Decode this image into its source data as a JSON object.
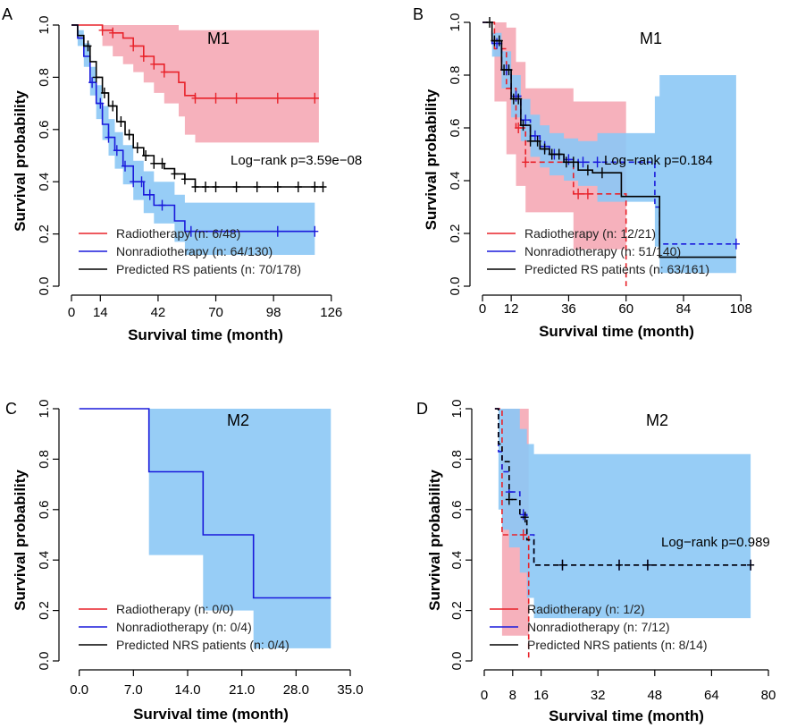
{
  "colors": {
    "radio": "#e8222a",
    "nonradio": "#1a1adb",
    "predicted": "#000000",
    "band_radio": "#f5a3b0",
    "band_nonradio": "#8cc8f5"
  },
  "chart_data": [
    {
      "type": "line",
      "panel": "A",
      "title": "M1",
      "xlabel": "Survival time (month)",
      "ylabel": "Survival probability",
      "xlim": [
        0,
        130
      ],
      "ylim": [
        0,
        1
      ],
      "xticks": [
        "0",
        "14",
        "42",
        "70",
        "98",
        "126"
      ],
      "xtick_values": [
        0,
        14,
        42,
        70,
        98,
        126
      ],
      "yticks": [
        "0.0",
        "0.2",
        "0.4",
        "0.6",
        "0.8",
        "1.0"
      ],
      "ytick_values": [
        0,
        0.2,
        0.4,
        0.6,
        0.8,
        1.0
      ],
      "annotation": "Log−rank p=3.59e−08",
      "legend": [
        "Radiotherapy (n: 6/48)",
        "Nonradiotherapy (n: 64/130)",
        "Predicted RS patients (n: 70/178)"
      ],
      "series": [
        {
          "name": "Radiotherapy (n: 6/48)",
          "key": "radio",
          "dash": false,
          "x": [
            0,
            15,
            20,
            25,
            30,
            35,
            40,
            45,
            52,
            55,
            60,
            120
          ],
          "y": [
            1.0,
            0.98,
            0.97,
            0.95,
            0.92,
            0.88,
            0.85,
            0.82,
            0.78,
            0.73,
            0.72,
            0.72
          ],
          "lower": [
            1.0,
            0.92,
            0.88,
            0.85,
            0.82,
            0.78,
            0.74,
            0.7,
            0.65,
            0.58,
            0.55,
            0.55
          ],
          "upper": [
            1.0,
            1.0,
            1.0,
            1.0,
            1.0,
            1.0,
            1.0,
            1.0,
            0.98,
            0.98,
            0.98,
            0.98
          ],
          "censor": [
            15,
            20,
            30,
            35,
            40,
            45,
            60,
            70,
            80,
            100,
            118
          ]
        },
        {
          "name": "Nonradiotherapy (n: 64/130)",
          "key": "nonradio",
          "dash": false,
          "x": [
            0,
            3,
            6,
            9,
            12,
            15,
            18,
            21,
            25,
            30,
            35,
            40,
            50,
            55,
            118
          ],
          "y": [
            1.0,
            0.95,
            0.88,
            0.78,
            0.7,
            0.62,
            0.57,
            0.52,
            0.46,
            0.4,
            0.35,
            0.31,
            0.25,
            0.21,
            0.21
          ],
          "lower": [
            1.0,
            0.92,
            0.84,
            0.73,
            0.64,
            0.56,
            0.5,
            0.45,
            0.39,
            0.33,
            0.28,
            0.24,
            0.17,
            0.12,
            0.12
          ],
          "upper": [
            1.0,
            0.98,
            0.93,
            0.84,
            0.77,
            0.69,
            0.64,
            0.59,
            0.54,
            0.48,
            0.44,
            0.4,
            0.35,
            0.32,
            0.32
          ],
          "censor": [
            10,
            14,
            18,
            22,
            26,
            30,
            34,
            38,
            44,
            58,
            100,
            118
          ]
        },
        {
          "name": "Predicted RS patients (n: 70/178)",
          "key": "predicted",
          "dash": false,
          "x": [
            0,
            3,
            6,
            9,
            12,
            15,
            18,
            22,
            26,
            30,
            35,
            40,
            45,
            50,
            55,
            60,
            70,
            80,
            122
          ],
          "y": [
            1.0,
            0.96,
            0.92,
            0.86,
            0.8,
            0.74,
            0.69,
            0.63,
            0.58,
            0.53,
            0.5,
            0.47,
            0.45,
            0.43,
            0.41,
            0.38,
            0.38,
            0.38,
            0.38
          ],
          "censor": [
            8,
            12,
            16,
            20,
            24,
            28,
            32,
            36,
            40,
            44,
            50,
            55,
            60,
            65,
            70,
            80,
            90,
            100,
            110,
            118,
            122
          ]
        }
      ]
    },
    {
      "type": "line",
      "panel": "B",
      "title": "M1",
      "xlabel": "Survival time (month)",
      "ylabel": "Survival probability",
      "xlim": [
        0,
        112
      ],
      "ylim": [
        0,
        1
      ],
      "xticks": [
        "0",
        "12",
        "36",
        "60",
        "84",
        "108"
      ],
      "xtick_values": [
        0,
        12,
        36,
        60,
        84,
        108
      ],
      "yticks": [
        "0.0",
        "0.2",
        "0.4",
        "0.6",
        "0.8",
        "1.0"
      ],
      "ytick_values": [
        0,
        0.2,
        0.4,
        0.6,
        0.8,
        1.0
      ],
      "annotation": "Log−rank p=0.184",
      "legend": [
        "Radiotherapy (n: 12/21)",
        "Nonradiotherapy (n: 51/140)",
        "Predicted RS patients (n: 63/161)"
      ],
      "series": [
        {
          "name": "Radiotherapy (n: 12/21)",
          "key": "radio",
          "dash": true,
          "x": [
            0,
            5,
            10,
            14,
            18,
            22,
            38,
            58,
            60
          ],
          "y": [
            1.0,
            0.9,
            0.75,
            0.6,
            0.47,
            0.47,
            0.35,
            0.35,
            0.0
          ],
          "lower": [
            1.0,
            0.7,
            0.5,
            0.38,
            0.28,
            0.28,
            0.14,
            0.14,
            0.0
          ],
          "upper": [
            1.0,
            1.0,
            0.98,
            0.85,
            0.75,
            0.75,
            0.7,
            0.7,
            0.0
          ],
          "censor": [
            15,
            18,
            40,
            44
          ]
        },
        {
          "name": "Nonradiotherapy (n: 51/140)",
          "key": "nonradio",
          "dash": true,
          "x": [
            0,
            4,
            8,
            12,
            16,
            20,
            24,
            28,
            34,
            40,
            48,
            72,
            74,
            106
          ],
          "y": [
            1.0,
            0.92,
            0.82,
            0.72,
            0.63,
            0.57,
            0.53,
            0.5,
            0.48,
            0.47,
            0.47,
            0.3,
            0.16,
            0.16
          ],
          "lower": [
            1.0,
            0.87,
            0.75,
            0.64,
            0.55,
            0.49,
            0.45,
            0.42,
            0.4,
            0.38,
            0.32,
            0.15,
            0.05,
            0.05
          ],
          "upper": [
            1.0,
            0.96,
            0.89,
            0.8,
            0.71,
            0.65,
            0.61,
            0.58,
            0.56,
            0.55,
            0.58,
            0.72,
            0.8,
            0.8
          ],
          "censor": [
            6,
            10,
            14,
            18,
            22,
            26,
            30,
            36,
            42,
            48,
            106
          ]
        },
        {
          "name": "Predicted RS patients (n: 63/161)",
          "key": "predicted",
          "dash": false,
          "x": [
            0,
            4,
            8,
            12,
            16,
            20,
            24,
            28,
            34,
            40,
            46,
            58,
            72,
            74,
            106
          ],
          "y": [
            1.0,
            0.93,
            0.82,
            0.71,
            0.61,
            0.55,
            0.52,
            0.5,
            0.47,
            0.44,
            0.43,
            0.34,
            0.34,
            0.11,
            0.11
          ],
          "censor": [
            3,
            5,
            7,
            9,
            11,
            13,
            15,
            17,
            20,
            23,
            26,
            29,
            32,
            35,
            38,
            44,
            50
          ]
        }
      ]
    },
    {
      "type": "line",
      "panel": "C",
      "title": "M2",
      "xlabel": "Survival time (month)",
      "ylabel": "Survival probability",
      "xlim": [
        -1,
        35
      ],
      "ylim": [
        0,
        1
      ],
      "xticks": [
        "0.0",
        "7.0",
        "14.0",
        "21.0",
        "28.0",
        "35.0"
      ],
      "xtick_values": [
        0,
        7,
        14,
        21,
        28,
        35
      ],
      "yticks": [
        "0.0",
        "0.2",
        "0.4",
        "0.6",
        "0.8",
        "1.0"
      ],
      "ytick_values": [
        0,
        0.2,
        0.4,
        0.6,
        0.8,
        1.0
      ],
      "annotation": "",
      "legend": [
        "Radiotherapy (n: 0/0)",
        "Nonradiotherapy (n: 0/4)",
        "Predicted NRS patients (n: 0/4)"
      ],
      "series": [
        {
          "name": "Nonradiotherapy (n: 0/4)",
          "key": "nonradio",
          "dash": false,
          "x": [
            0,
            9,
            16,
            22.5,
            32.5
          ],
          "y": [
            1.0,
            0.75,
            0.5,
            0.25,
            0.25
          ],
          "lower": [
            1.0,
            0.42,
            0.2,
            0.05,
            0.05
          ],
          "upper": [
            1.0,
            1.0,
            1.0,
            1.0,
            1.0
          ],
          "censor": []
        }
      ]
    },
    {
      "type": "line",
      "panel": "D",
      "title": "M2",
      "xlabel": "Survival time (month)",
      "ylabel": "Survival probability",
      "xlim": [
        0,
        80
      ],
      "ylim": [
        0,
        1
      ],
      "xticks": [
        "0",
        "8",
        "16",
        "32",
        "48",
        "64",
        "80"
      ],
      "xtick_values": [
        0,
        8,
        16,
        32,
        48,
        64,
        80
      ],
      "yticks": [
        "0.0",
        "0.2",
        "0.4",
        "0.6",
        "0.8",
        "1.0"
      ],
      "ytick_values": [
        0,
        0.2,
        0.4,
        0.6,
        0.8,
        1.0
      ],
      "annotation": "Log−rank p=0.989",
      "legend": [
        "Radiotherapy (n: 1/2)",
        "Nonradiotherapy (n: 7/12)",
        "Predicted NRS patients (n: 8/14)"
      ],
      "series": [
        {
          "name": "Radiotherapy (n: 1/2)",
          "key": "radio",
          "dash": true,
          "x": [
            3,
            5,
            12,
            12.5
          ],
          "y": [
            1.0,
            0.5,
            0.5,
            0.0
          ],
          "lower": [
            1.0,
            0.1,
            0.1,
            0.0
          ],
          "upper": [
            1.0,
            1.0,
            1.0,
            0.0
          ],
          "censor": [
            11
          ]
        },
        {
          "name": "Nonradiotherapy (n: 7/12)",
          "key": "nonradio",
          "dash": true,
          "x": [
            3,
            4,
            5,
            7,
            10,
            12,
            14,
            75
          ],
          "y": [
            1.0,
            0.83,
            0.75,
            0.67,
            0.58,
            0.5,
            0.38,
            0.38
          ],
          "lower": [
            1.0,
            0.6,
            0.52,
            0.45,
            0.35,
            0.25,
            0.17,
            0.17
          ],
          "upper": [
            1.0,
            1.0,
            1.0,
            1.0,
            0.92,
            0.86,
            0.82,
            0.82
          ],
          "censor": [
            7,
            11,
            22,
            38,
            46,
            75
          ]
        },
        {
          "name": "Predicted NRS patients (n: 8/14)",
          "key": "predicted",
          "dash": true,
          "x": [
            3,
            4,
            5,
            7,
            10,
            12,
            14,
            75
          ],
          "y": [
            1.0,
            0.86,
            0.79,
            0.64,
            0.57,
            0.48,
            0.38,
            0.38
          ],
          "censor": [
            7,
            11.5,
            22,
            38,
            46,
            75
          ]
        }
      ]
    }
  ]
}
